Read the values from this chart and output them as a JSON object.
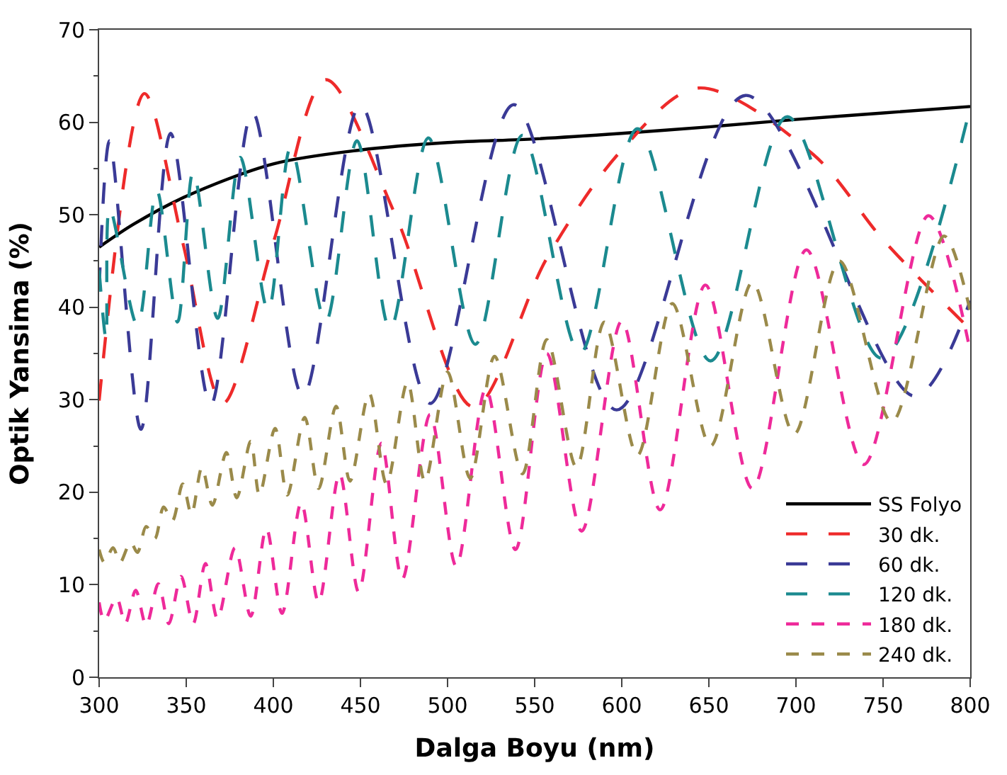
{
  "chart_data": {
    "type": "line",
    "xlabel": "Dalga Boyu (nm)",
    "ylabel": "Optik Yansima (%)",
    "xlim": [
      300,
      800
    ],
    "ylim": [
      0,
      70
    ],
    "xticks": [
      300,
      350,
      400,
      450,
      500,
      550,
      600,
      650,
      700,
      750,
      800
    ],
    "yticks": [
      0,
      10,
      20,
      30,
      40,
      50,
      60,
      70
    ],
    "legend": "bottom right",
    "marker": "none",
    "series": [
      {
        "name": "SS Folyo",
        "color": "#000000",
        "line_style": "solid",
        "x": [
          300,
          320,
          350,
          400,
          450,
          500,
          550,
          600,
          650,
          700,
          750,
          800
        ],
        "values": [
          46.5,
          49,
          52,
          55.5,
          57,
          57.8,
          58.2,
          58.8,
          59.5,
          60.3,
          61,
          61.7
        ]
      },
      {
        "name": "30 dk.",
        "color": "#ee2a2a",
        "line_style": "longdash",
        "x": [
          300,
          326,
          348,
          371,
          400,
          430,
          470,
          515,
          557,
          600,
          644,
          710,
          750,
          800
        ],
        "values": [
          29.9,
          63.1,
          47,
          29.6,
          47,
          64.6,
          50,
          29.2,
          45.3,
          57,
          63.7,
          56.5,
          47.3,
          37.6
        ]
      },
      {
        "name": "60 dk.",
        "color": "#3a3a96",
        "line_style": "longdash",
        "x": [
          300,
          306,
          324,
          341,
          364,
          388,
          417,
          450,
          490,
          538,
          597,
          671,
          768,
          800
        ],
        "values": [
          42,
          58,
          26.8,
          58.8,
          29.4,
          61.1,
          30.4,
          61.9,
          29.6,
          61.9,
          28.9,
          62.9,
          30.4,
          40.7
        ]
      },
      {
        "name": "120 dk.",
        "color": "#1b8a8f",
        "line_style": "longdash",
        "x": [
          300,
          304,
          306,
          322,
          333,
          345,
          354,
          368,
          381,
          397,
          410,
          430,
          448,
          467,
          489,
          516,
          543,
          576,
          609,
          651,
          695,
          749,
          800
        ],
        "values": [
          44,
          36.5,
          50.8,
          38,
          52.7,
          38.4,
          54.7,
          38.8,
          56.2,
          39.6,
          57.3,
          38.4,
          58,
          37.6,
          58.3,
          36,
          58.6,
          35,
          59.3,
          34.2,
          60.6,
          34.5,
          61.6
        ]
      },
      {
        "name": "180 dk.",
        "color": "#ee2a9a",
        "line_style": "dash",
        "x": [
          300,
          303,
          310,
          315,
          321,
          327,
          334,
          340,
          347,
          354,
          361,
          368,
          378,
          387,
          396,
          405,
          416,
          426,
          438,
          449,
          462,
          474,
          490,
          505,
          522,
          539,
          557,
          577,
          600,
          622,
          648,
          675,
          706,
          739,
          776,
          800
        ],
        "values": [
          8.1,
          6.1,
          8.6,
          5.8,
          9.4,
          5.6,
          10.1,
          5.8,
          10.9,
          5.8,
          12.3,
          6.3,
          14,
          6.6,
          16.1,
          6.9,
          18.9,
          8.1,
          22,
          9.2,
          25.3,
          10.6,
          28.4,
          12,
          31.2,
          13.8,
          35,
          15.8,
          38.5,
          18.1,
          42.4,
          20.4,
          46.2,
          23,
          49.9,
          35.3
        ]
      },
      {
        "name": "240 dk.",
        "color": "#9a8a4a",
        "line_style": "dash",
        "x": [
          300,
          303,
          308,
          312,
          318,
          322,
          327,
          332,
          337,
          342,
          348,
          353,
          359,
          365,
          373,
          379,
          387,
          392,
          401,
          408,
          418,
          426,
          436,
          444,
          455,
          465,
          477,
          487,
          500,
          513,
          527,
          543,
          557,
          574,
          590,
          609,
          629,
          651,
          675,
          699,
          725,
          755,
          785,
          800
        ],
        "values": [
          13.8,
          12.4,
          14,
          12.4,
          14.6,
          13.5,
          16.3,
          15,
          18.4,
          16.9,
          20.9,
          17.6,
          22.7,
          18.6,
          24.3,
          19.4,
          25.5,
          19.7,
          26.9,
          19.7,
          28.1,
          20.4,
          29.3,
          21.2,
          30.7,
          20.9,
          31.9,
          21.2,
          33,
          21.5,
          34.7,
          22,
          36.5,
          22.7,
          38.4,
          24,
          40.4,
          25,
          42.7,
          26.3,
          45,
          27.6,
          47.7,
          39.6
        ]
      }
    ]
  }
}
